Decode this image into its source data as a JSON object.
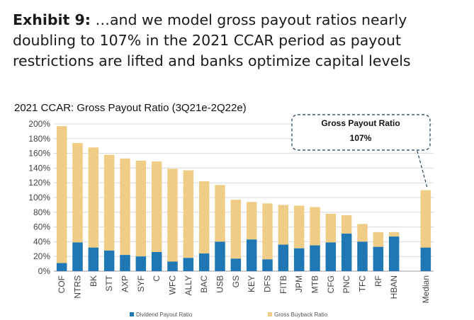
{
  "exhibit": {
    "label": "Exhibit 9:",
    "text": " …and we model gross payout ratios nearly doubling to 107% in the 2021 CCAR period as payout restrictions are lifted and banks optimize capital levels"
  },
  "chart_data": {
    "type": "bar",
    "stacked": true,
    "title": "2021 CCAR: Gross Payout Ratio (3Q21e-2Q22e)",
    "categories": [
      "COF",
      "NTRS",
      "BK",
      "STT",
      "AXP",
      "SYF",
      "C",
      "WFC",
      "ALLY",
      "BAC",
      "USB",
      "GS",
      "KEY",
      "DFS",
      "FITB",
      "JPM",
      "MTB",
      "CFG",
      "PNC",
      "TFC",
      "RF",
      "HBAN",
      "Median"
    ],
    "series": [
      {
        "name": "Dividend Payout Ratio",
        "color": "#1f77b4",
        "values": [
          11,
          39,
          32,
          28,
          22,
          20,
          26,
          13,
          18,
          24,
          40,
          17,
          43,
          16,
          36,
          31,
          35,
          39,
          51,
          40,
          33,
          47,
          32
        ]
      },
      {
        "name": "Gross Buyback Ratio",
        "color": "#f0cd86",
        "values": [
          186,
          135,
          136,
          130,
          131,
          130,
          123,
          126,
          119,
          98,
          77,
          80,
          51,
          76,
          54,
          58,
          52,
          39,
          25,
          24,
          20,
          6,
          78
        ]
      }
    ],
    "ylim": [
      0,
      200
    ],
    "yticks": [
      0,
      20,
      40,
      60,
      80,
      100,
      120,
      140,
      160,
      180,
      200
    ],
    "ytick_format": "percent",
    "grid": true,
    "legend_position": "bottom",
    "annotation": {
      "title": "Gross Payout Ratio",
      "value": "107%",
      "target": "Median"
    }
  }
}
